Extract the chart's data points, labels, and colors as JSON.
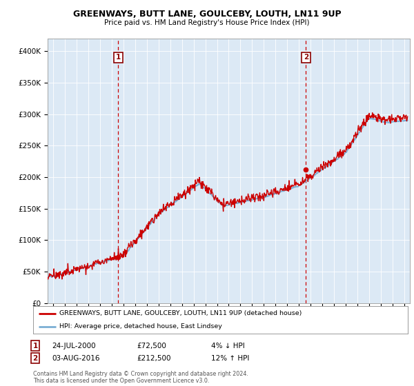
{
  "title": "GREENWAYS, BUTT LANE, GOULCEBY, LOUTH, LN11 9UP",
  "subtitle": "Price paid vs. HM Land Registry's House Price Index (HPI)",
  "ylabel_ticks": [
    "£0",
    "£50K",
    "£100K",
    "£150K",
    "£200K",
    "£250K",
    "£300K",
    "£350K",
    "£400K"
  ],
  "ytick_values": [
    0,
    50000,
    100000,
    150000,
    200000,
    250000,
    300000,
    350000,
    400000
  ],
  "ylim": [
    0,
    420000
  ],
  "xlim_start": 1994.5,
  "xlim_end": 2025.5,
  "sale1_x": 2000.55,
  "sale1_y": 72500,
  "sale2_x": 2016.6,
  "sale2_y": 212500,
  "legend_line1": "GREENWAYS, BUTT LANE, GOULCEBY, LOUTH, LN11 9UP (detached house)",
  "legend_line2": "HPI: Average price, detached house, East Lindsey",
  "ann1_date": "24-JUL-2000",
  "ann1_price": "£72,500",
  "ann1_hpi": "4% ↓ HPI",
  "ann2_date": "03-AUG-2016",
  "ann2_price": "£212,500",
  "ann2_hpi": "12% ↑ HPI",
  "footer": "Contains HM Land Registry data © Crown copyright and database right 2024.\nThis data is licensed under the Open Government Licence v3.0.",
  "bg_color": "#ffffff",
  "chart_bg_color": "#dce9f5",
  "grid_color": "#ffffff",
  "hpi_color": "#7bafd4",
  "price_color": "#cc0000",
  "dashed_color": "#cc0000"
}
